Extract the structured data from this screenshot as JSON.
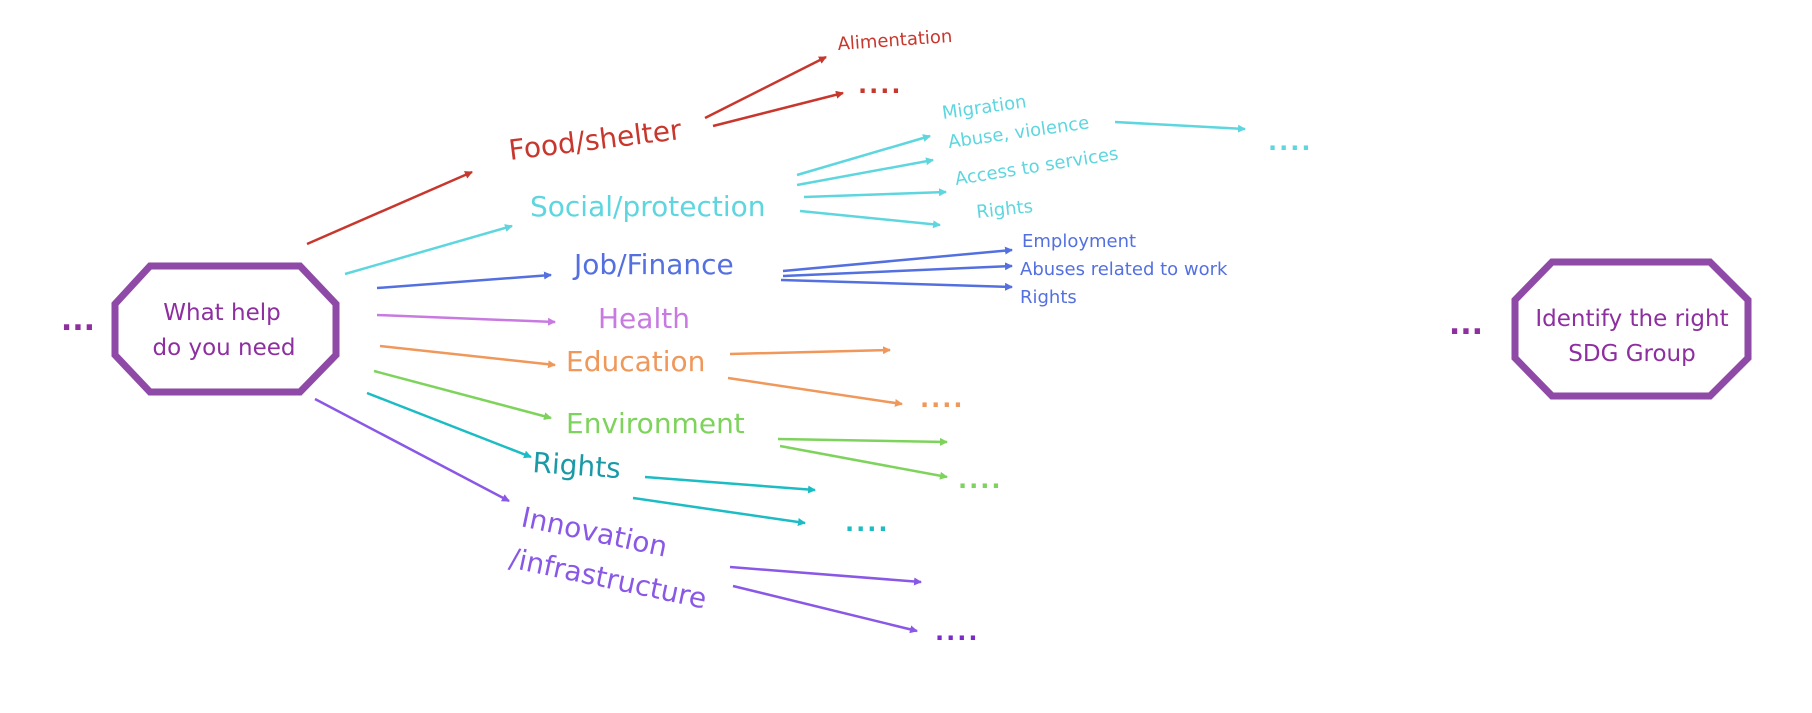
{
  "diagram": {
    "lead_ellipsis": "...",
    "trail_ellipsis": "...",
    "start_node": {
      "line1": "What help",
      "line2": "do you need"
    },
    "end_node": {
      "line1": "Identify the right",
      "line2": "SDG Group"
    },
    "categories": {
      "food": {
        "label": "Food/shelter",
        "color": "#c8372d",
        "subs": [
          "Alimentation"
        ],
        "more": "...."
      },
      "social": {
        "label": "Social/protection",
        "color": "#5ed6df",
        "subs": [
          "Migration",
          "Abuse, violence",
          "Access to services",
          "Rights"
        ],
        "more": "...."
      },
      "job": {
        "label": "Job/Finance",
        "color": "#5470e0",
        "subs": [
          "Employment",
          "Abuses related to work",
          "Rights"
        ]
      },
      "health": {
        "label": "Health",
        "color": "#c87ae0"
      },
      "education": {
        "label": "Education",
        "color": "#f0975a",
        "more": "...."
      },
      "environment": {
        "label": "Environment",
        "color": "#7ed35c",
        "more": "...."
      },
      "rights": {
        "label": "Rights",
        "color": "#1a9aa6",
        "arrow_color": "#1cbcc4",
        "more_color": "#1cbcc4",
        "more": "...."
      },
      "innovation": {
        "label_line1": "Innovation",
        "label_line2": "/infrastructure",
        "color": "#8a58e6",
        "more_color": "#7a2cc8",
        "more": "...."
      }
    },
    "colors": {
      "node_stroke": "#8e4aa6",
      "node_text": "#8e2fa0",
      "ellipsis": "#8e2fa0"
    }
  }
}
